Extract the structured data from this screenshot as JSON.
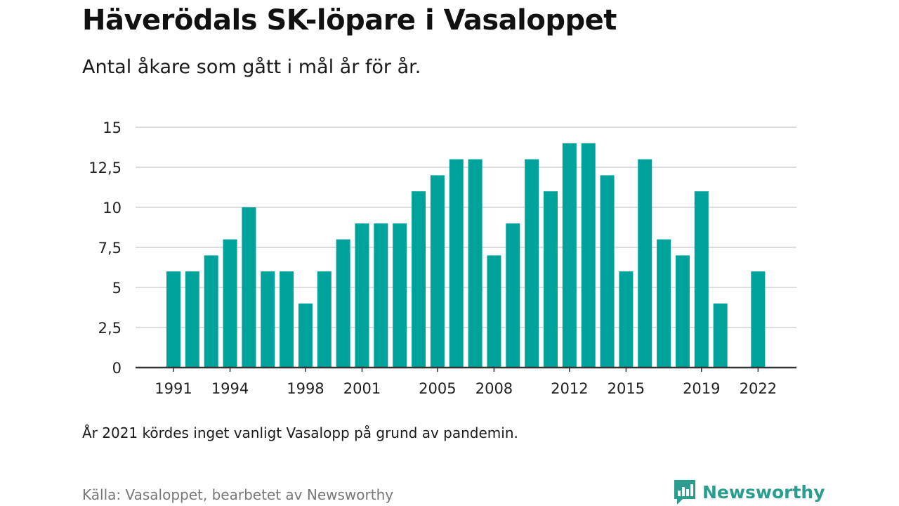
{
  "header": {
    "title": "Häverödals SK-löpare i Vasaloppet",
    "subtitle": "Antal åkare som gått i mål år för år."
  },
  "footer": {
    "note": "År 2021 kördes inget vanligt Vasalopp på grund av pandemin.",
    "source": "Källa: Vasaloppet, bearbetet av Newsworthy",
    "brand": "Newsworthy"
  },
  "colors": {
    "bar": "#00a39b",
    "grid": "#dddddd",
    "axis": "#333333",
    "brand": "#2a9d8f"
  },
  "chart_data": {
    "type": "bar",
    "categories": [
      1991,
      1992,
      1993,
      1994,
      1995,
      1996,
      1997,
      1998,
      1999,
      2000,
      2001,
      2002,
      2003,
      2004,
      2005,
      2006,
      2007,
      2008,
      2009,
      2010,
      2011,
      2012,
      2013,
      2014,
      2015,
      2016,
      2017,
      2018,
      2019,
      2020,
      2021,
      2022
    ],
    "values": [
      6,
      6,
      7,
      8,
      10,
      6,
      6,
      4,
      6,
      8,
      9,
      9,
      9,
      11,
      12,
      13,
      13,
      7,
      9,
      13,
      11,
      14,
      14,
      12,
      6,
      13,
      8,
      7,
      11,
      4,
      null,
      6
    ],
    "x_tick_labels": [
      "1991",
      "1994",
      "1998",
      "2001",
      "2005",
      "2008",
      "2012",
      "2015",
      "2019",
      "2022"
    ],
    "y_ticks": [
      0,
      2.5,
      5,
      7.5,
      10,
      12.5,
      15
    ],
    "y_tick_labels": [
      "0",
      "2,5",
      "5",
      "7,5",
      "10",
      "12,5",
      "15"
    ],
    "ylim": [
      0,
      15
    ],
    "xlabel": "",
    "ylabel": "",
    "grid": true,
    "legend": false
  }
}
